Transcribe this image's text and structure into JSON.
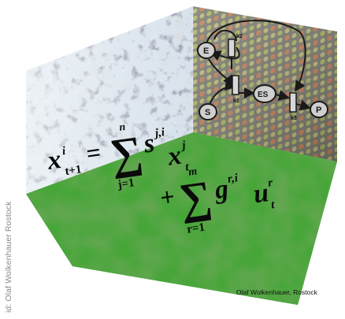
{
  "credits": {
    "side": "id: Olaf Wolkenhauer Rostock",
    "bottom": "Olaf Wolkenhauer, Rostock"
  },
  "diagram": {
    "nodes": {
      "E": "E",
      "S": "S",
      "ES": "ES",
      "P": "P"
    },
    "rates": {
      "k2": "k2",
      "k1": "k1",
      "k3": "k3"
    }
  },
  "equation": {
    "lhs": "x",
    "lhs_sup": "i",
    "lhs_sub": "t+1",
    "eq": "=",
    "sum1_upper": "n",
    "sum1_lower": "j=1",
    "term1_coef": "s",
    "term1_coef_sup": "j,i",
    "term1_var": "x",
    "term1_var_sup": "j",
    "term1_var_sub": "t",
    "plus": "+",
    "sum2_upper": "m",
    "sum2_lower": "r=1",
    "term2_coef": "g",
    "term2_coef_sup": "r,i",
    "term2_var": "u",
    "term2_var_sup": "r",
    "term2_var_sub": "t",
    "sigma": "∑"
  },
  "colors": {
    "floor": "#3a9a30",
    "left_wall": "#e8eef3",
    "right_wall": "#8a8a7a",
    "diagram_ink": "#1a1a1a"
  }
}
